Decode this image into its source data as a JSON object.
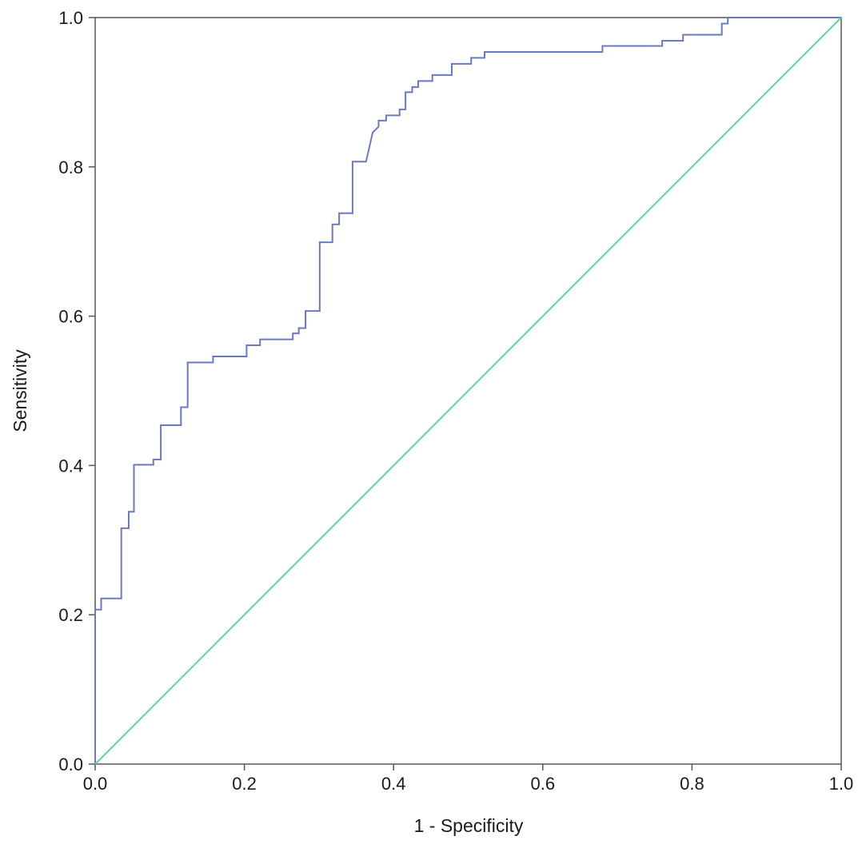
{
  "chart_data": {
    "type": "line",
    "title": "",
    "xlabel": "1 - Specificity",
    "ylabel": "Sensitivity",
    "xlim": [
      0.0,
      1.0
    ],
    "ylim": [
      0.0,
      1.0
    ],
    "x_tick_labels": [
      "0.0",
      "0.2",
      "0.4",
      "0.6",
      "0.8",
      "1.0"
    ],
    "y_tick_labels": [
      "0.0",
      "0.2",
      "0.4",
      "0.6",
      "0.8",
      "1.0"
    ],
    "grid": false,
    "legend": "none",
    "series": [
      {
        "color": "#6b78c8",
        "step": true,
        "points": [
          [
            0.0,
            0.0
          ],
          [
            0.0,
            0.207
          ],
          [
            0.008,
            0.207
          ],
          [
            0.008,
            0.222
          ],
          [
            0.035,
            0.222
          ],
          [
            0.035,
            0.316
          ],
          [
            0.045,
            0.316
          ],
          [
            0.045,
            0.338
          ],
          [
            0.052,
            0.338
          ],
          [
            0.052,
            0.401
          ],
          [
            0.078,
            0.401
          ],
          [
            0.078,
            0.408
          ],
          [
            0.088,
            0.408
          ],
          [
            0.088,
            0.454
          ],
          [
            0.115,
            0.454
          ],
          [
            0.115,
            0.478
          ],
          [
            0.124,
            0.478
          ],
          [
            0.124,
            0.538
          ],
          [
            0.158,
            0.538
          ],
          [
            0.158,
            0.546
          ],
          [
            0.203,
            0.546
          ],
          [
            0.203,
            0.561
          ],
          [
            0.221,
            0.561
          ],
          [
            0.221,
            0.569
          ],
          [
            0.265,
            0.569
          ],
          [
            0.265,
            0.577
          ],
          [
            0.273,
            0.577
          ],
          [
            0.273,
            0.584
          ],
          [
            0.282,
            0.584
          ],
          [
            0.282,
            0.607
          ],
          [
            0.301,
            0.607
          ],
          [
            0.301,
            0.699
          ],
          [
            0.318,
            0.699
          ],
          [
            0.318,
            0.723
          ],
          [
            0.327,
            0.723
          ],
          [
            0.327,
            0.738
          ],
          [
            0.345,
            0.738
          ],
          [
            0.345,
            0.807
          ],
          [
            0.363,
            0.807
          ],
          [
            0.372,
            0.846
          ],
          [
            0.38,
            0.854
          ],
          [
            0.38,
            0.862
          ],
          [
            0.39,
            0.862
          ],
          [
            0.39,
            0.869
          ],
          [
            0.408,
            0.869
          ],
          [
            0.408,
            0.877
          ],
          [
            0.416,
            0.877
          ],
          [
            0.416,
            0.9
          ],
          [
            0.425,
            0.9
          ],
          [
            0.425,
            0.907
          ],
          [
            0.433,
            0.907
          ],
          [
            0.433,
            0.915
          ],
          [
            0.452,
            0.915
          ],
          [
            0.452,
            0.923
          ],
          [
            0.478,
            0.923
          ],
          [
            0.478,
            0.938
          ],
          [
            0.504,
            0.938
          ],
          [
            0.504,
            0.946
          ],
          [
            0.522,
            0.946
          ],
          [
            0.522,
            0.954
          ],
          [
            0.68,
            0.954
          ],
          [
            0.68,
            0.962
          ],
          [
            0.76,
            0.962
          ],
          [
            0.76,
            0.969
          ],
          [
            0.788,
            0.969
          ],
          [
            0.788,
            0.977
          ],
          [
            0.84,
            0.977
          ],
          [
            0.84,
            0.992
          ],
          [
            0.848,
            0.992
          ],
          [
            0.848,
            1.0
          ],
          [
            1.0,
            1.0
          ]
        ]
      },
      {
        "color": "#5fd3a0",
        "step": false,
        "points": [
          [
            0.0,
            0.0
          ],
          [
            1.0,
            1.0
          ]
        ]
      }
    ]
  }
}
